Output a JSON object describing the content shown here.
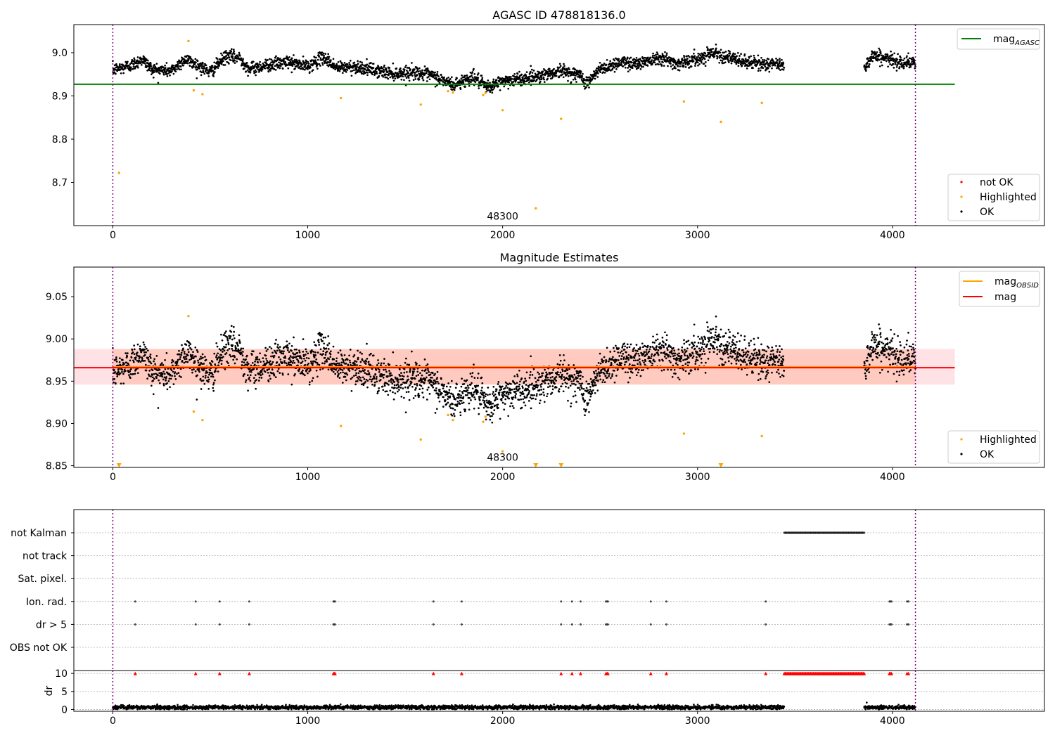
{
  "chart_data": [
    {
      "type": "scatter",
      "title": "AGASC ID 478818136.0",
      "xlim": [
        -200,
        4780
      ],
      "ylim": [
        8.6,
        9.065
      ],
      "xticks": [
        0,
        1000,
        2000,
        3000,
        4000
      ],
      "yticks": [
        8.7,
        8.8,
        8.9,
        9.0
      ],
      "grid": false,
      "annotation": {
        "text": "48300",
        "x": 2000,
        "y": 8.614
      },
      "vlines": [
        0,
        4118
      ],
      "reference_lines": [
        {
          "name": "mag_AGASC",
          "y": 8.927,
          "x_range": [
            -200,
            4320
          ],
          "color": "#008000"
        }
      ],
      "series": [
        {
          "name": "not OK",
          "color": "#ff0000",
          "points": []
        },
        {
          "name": "Highlighted",
          "color": "#ffa500",
          "points": [
            [
              32,
              8.722
            ],
            [
              388,
              9.027
            ],
            [
              415,
              8.913
            ],
            [
              460,
              8.904
            ],
            [
              1170,
              8.895
            ],
            [
              1580,
              8.88
            ],
            [
              1720,
              8.911
            ],
            [
              1745,
              8.908
            ],
            [
              1900,
              8.902
            ],
            [
              1912,
              8.907
            ],
            [
              2000,
              8.867
            ],
            [
              2170,
              8.64
            ],
            [
              2300,
              8.847
            ],
            [
              2930,
              8.887
            ],
            [
              3120,
              8.84
            ],
            [
              3330,
              8.884
            ]
          ]
        },
        {
          "name": "OK",
          "color": "#000000",
          "segments": [
            {
              "x": [
                0,
                3445
              ],
              "curve": [
                [
                  0,
                  8.96
                ],
                [
                  100,
                  8.972
                ],
                [
                  150,
                  8.985
                ],
                [
                  200,
                  8.962
                ],
                [
                  300,
                  8.958
                ],
                [
                  370,
                  8.985
                ],
                [
                  420,
                  8.975
                ],
                [
                  500,
                  8.955
                ],
                [
                  580,
                  8.992
                ],
                [
                  650,
                  8.988
                ],
                [
                  700,
                  8.962
                ],
                [
                  800,
                  8.972
                ],
                [
                  900,
                  8.978
                ],
                [
                  1000,
                  8.968
                ],
                [
                  1080,
                  8.99
                ],
                [
                  1150,
                  8.965
                ],
                [
                  1250,
                  8.968
                ],
                [
                  1350,
                  8.958
                ],
                [
                  1450,
                  8.952
                ],
                [
                  1550,
                  8.955
                ],
                [
                  1650,
                  8.945
                ],
                [
                  1750,
                  8.925
                ],
                [
                  1850,
                  8.945
                ],
                [
                  1920,
                  8.918
                ],
                [
                  2000,
                  8.935
                ],
                [
                  2100,
                  8.94
                ],
                [
                  2200,
                  8.948
                ],
                [
                  2300,
                  8.958
                ],
                [
                  2400,
                  8.948
                ],
                [
                  2430,
                  8.928
                ],
                [
                  2500,
                  8.962
                ],
                [
                  2600,
                  8.978
                ],
                [
                  2700,
                  8.975
                ],
                [
                  2800,
                  8.99
                ],
                [
                  2900,
                  8.975
                ],
                [
                  3000,
                  8.985
                ],
                [
                  3080,
                  9.002
                ],
                [
                  3200,
                  8.982
                ],
                [
                  3300,
                  8.975
                ],
                [
                  3445,
                  8.972
                ]
              ]
            },
            {
              "x": [
                3855,
                4118
              ],
              "curve": [
                [
                  3855,
                  8.965
                ],
                [
                  3900,
                  8.995
                ],
                [
                  4000,
                  8.982
                ],
                [
                  4118,
                  8.975
                ]
              ]
            }
          ]
        }
      ],
      "legends": [
        {
          "position": "upper right",
          "entries": [
            "mag_AGASC"
          ]
        },
        {
          "position": "lower right",
          "entries": [
            "not OK",
            "Highlighted",
            "OK"
          ]
        }
      ]
    },
    {
      "type": "scatter",
      "title": "Magnitude Estimates",
      "xlim": [
        -200,
        4780
      ],
      "ylim": [
        8.848,
        9.085
      ],
      "xticks": [
        0,
        1000,
        2000,
        3000,
        4000
      ],
      "yticks": [
        8.85,
        8.9,
        8.95,
        9.0,
        9.05
      ],
      "grid": false,
      "annotation": {
        "text": "48300",
        "x": 2000,
        "y": 8.856
      },
      "vlines": [
        0,
        4118
      ],
      "bands": [
        {
          "y": [
            8.946,
            8.988
          ],
          "x_range": [
            -200,
            4320
          ],
          "color": "#ffb6c1",
          "opacity": 0.4
        },
        {
          "y": [
            8.946,
            8.988
          ],
          "x_range": [
            0,
            4118
          ],
          "color": "#ffa07a",
          "opacity": 0.35
        }
      ],
      "reference_lines": [
        {
          "name": "mag_OBSID",
          "y": 8.967,
          "x_range": [
            0,
            4118
          ],
          "color": "#ffa500"
        },
        {
          "name": "mag",
          "y": 8.966,
          "x_range": [
            -200,
            4320
          ],
          "color": "#ff0000"
        }
      ],
      "series": [
        {
          "name": "Highlighted",
          "color": "#ffa500",
          "points": [
            [
              388,
              9.027
            ],
            [
              415,
              8.914
            ],
            [
              460,
              8.904
            ],
            [
              1170,
              8.897
            ],
            [
              1580,
              8.881
            ],
            [
              1720,
              8.91
            ],
            [
              1745,
              8.904
            ],
            [
              1900,
              8.902
            ],
            [
              1912,
              8.908
            ],
            [
              2000,
              8.867
            ],
            [
              2930,
              8.888
            ],
            [
              3330,
              8.885
            ]
          ],
          "clipped_markers": [
            32,
            2170,
            2300,
            3120
          ]
        },
        {
          "name": "OK",
          "color": "#000000",
          "segments": [
            {
              "x": [
                0,
                3445
              ],
              "curve": [
                [
                  0,
                  8.96
                ],
                [
                  100,
                  8.972
                ],
                [
                  150,
                  8.985
                ],
                [
                  200,
                  8.962
                ],
                [
                  300,
                  8.958
                ],
                [
                  370,
                  8.985
                ],
                [
                  420,
                  8.975
                ],
                [
                  500,
                  8.955
                ],
                [
                  580,
                  8.992
                ],
                [
                  650,
                  8.988
                ],
                [
                  700,
                  8.962
                ],
                [
                  800,
                  8.972
                ],
                [
                  900,
                  8.978
                ],
                [
                  1000,
                  8.968
                ],
                [
                  1080,
                  8.99
                ],
                [
                  1150,
                  8.965
                ],
                [
                  1250,
                  8.968
                ],
                [
                  1350,
                  8.958
                ],
                [
                  1450,
                  8.952
                ],
                [
                  1550,
                  8.955
                ],
                [
                  1650,
                  8.945
                ],
                [
                  1750,
                  8.925
                ],
                [
                  1850,
                  8.945
                ],
                [
                  1920,
                  8.918
                ],
                [
                  2000,
                  8.935
                ],
                [
                  2100,
                  8.94
                ],
                [
                  2200,
                  8.948
                ],
                [
                  2300,
                  8.958
                ],
                [
                  2400,
                  8.948
                ],
                [
                  2430,
                  8.928
                ],
                [
                  2500,
                  8.962
                ],
                [
                  2600,
                  8.978
                ],
                [
                  2700,
                  8.975
                ],
                [
                  2800,
                  8.99
                ],
                [
                  2900,
                  8.975
                ],
                [
                  3000,
                  8.985
                ],
                [
                  3080,
                  9.002
                ],
                [
                  3200,
                  8.982
                ],
                [
                  3300,
                  8.975
                ],
                [
                  3445,
                  8.972
                ]
              ]
            },
            {
              "x": [
                3855,
                4118
              ],
              "curve": [
                [
                  3855,
                  8.965
                ],
                [
                  3900,
                  8.995
                ],
                [
                  4000,
                  8.982
                ],
                [
                  4118,
                  8.975
                ]
              ]
            }
          ]
        }
      ],
      "legends": [
        {
          "position": "upper right",
          "entries": [
            "mag_OBSID",
            "mag"
          ]
        },
        {
          "position": "lower right",
          "entries": [
            "Highlighted",
            "OK"
          ]
        }
      ]
    },
    {
      "type": "scatter",
      "title": "",
      "xlim": [
        -200,
        4780
      ],
      "xticks": [
        0,
        1000,
        2000,
        3000,
        4000
      ],
      "categories": [
        "not Kalman",
        "not track",
        "Sat. pixel.",
        "Ion. rad.",
        "dr > 5",
        "OBS not OK"
      ],
      "grid": true,
      "vlines": [
        0,
        4118
      ],
      "flags": {
        "not Kalman": {
          "x_range": [
            3445,
            3855
          ]
        },
        "not track": [],
        "Sat. pixel.": [],
        "Ion. rad.": [
          115,
          425,
          548,
          700,
          1132,
          1136,
          1140,
          1645,
          1790,
          2300,
          2356,
          2400,
          2530,
          2536,
          2540,
          2760,
          2840,
          3350,
          3985,
          3990,
          3995,
          4075,
          4082
        ],
        "dr > 5": [
          115,
          425,
          548,
          700,
          1132,
          1136,
          1140,
          1645,
          1790,
          2300,
          2356,
          2400,
          2530,
          2536,
          2540,
          2760,
          2840,
          3350,
          3985,
          3990,
          3995,
          4075,
          4082
        ],
        "OBS not OK": []
      }
    },
    {
      "type": "scatter",
      "title": "",
      "ylabel": "dr",
      "xlim": [
        -200,
        4780
      ],
      "ylim": [
        -0.5,
        10.8
      ],
      "xticks": [
        0,
        1000,
        2000,
        3000,
        4000
      ],
      "xtick_labels": [
        "0",
        "1000",
        "2000",
        "3000",
        "4000"
      ],
      "yticks": [
        0,
        5,
        10
      ],
      "grid": true,
      "vlines": [
        0,
        4118
      ],
      "series": [
        {
          "name": "dr",
          "color": "#000000",
          "segments": [
            {
              "x": [
                0,
                3445
              ],
              "level": 0.6
            },
            {
              "x": [
                3855,
                4118
              ],
              "level": 0.6
            }
          ]
        },
        {
          "name": "dr > 10",
          "color": "#ff0000",
          "marker": "triangle",
          "y": 10,
          "points": [
            115,
            425,
            548,
            700,
            1132,
            1136,
            1140,
            1645,
            1790,
            2300,
            2356,
            2400,
            2530,
            2536,
            2540,
            2760,
            2840,
            3350,
            3985,
            3990,
            3995,
            4075,
            4082
          ],
          "x_range": [
            3445,
            3855
          ]
        }
      ]
    }
  ]
}
